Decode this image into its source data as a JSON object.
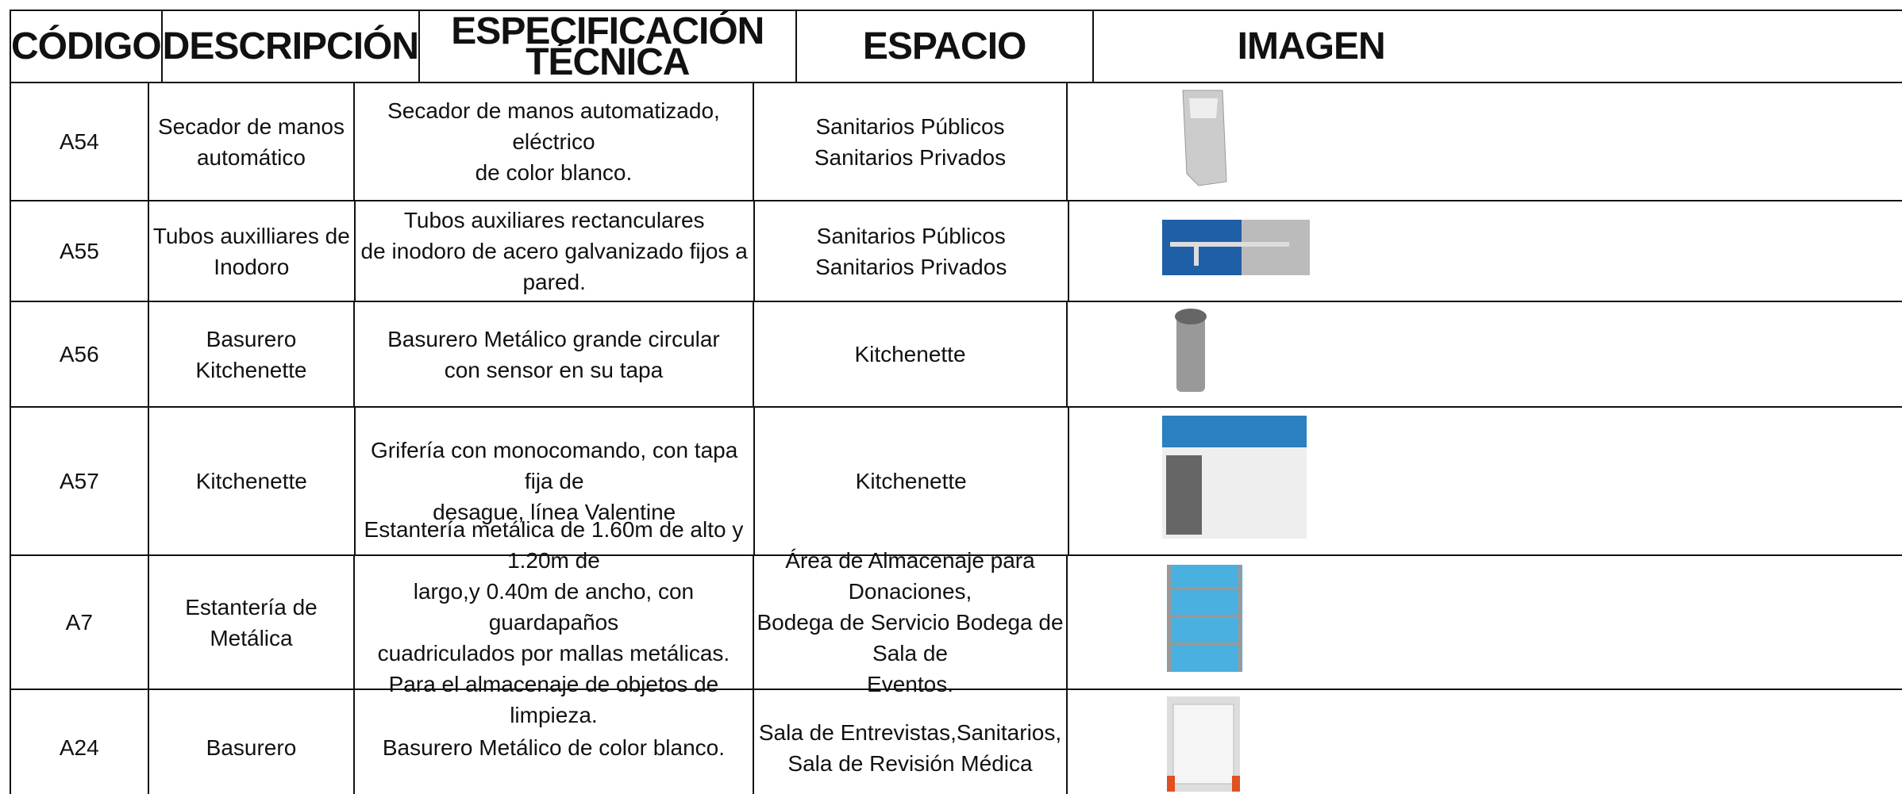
{
  "table": {
    "header": [
      "CÓDIGO",
      "DESCRIPCIÓN",
      "ESPECIFICACIÓN TÉCNICA",
      "ESPACIO",
      "IMAGEN"
    ],
    "rows": [
      {
        "code": "A54",
        "description": [
          "Secador de manos",
          "automático"
        ],
        "spec": [
          "Secador de manos automatizado, eléctrico",
          "de color blanco."
        ],
        "space": [
          "Sanitarios Públicos",
          "Sanitarios Privados"
        ]
      },
      {
        "code": "A55",
        "description": [
          "Tubos auxilliares de",
          "Inodoro"
        ],
        "spec": [
          "Tubos auxiliares rectanculares",
          "de inodoro de acero galvanizado fijos a pared."
        ],
        "space": [
          "Sanitarios Públicos",
          "Sanitarios Privados"
        ]
      },
      {
        "code": "A56",
        "description": [
          "Basurero Kitchenette"
        ],
        "spec": [
          "Basurero Metálico grande circular",
          "con sensor en su tapa"
        ],
        "space": [
          "Kitchenette"
        ]
      },
      {
        "code": "A57",
        "description": [
          "Kitchenette"
        ],
        "spec": [
          "Grifería con monocomando, con tapa fija de",
          "desague, línea Valentine"
        ],
        "space": [
          "Kitchenette"
        ]
      },
      {
        "code": "A7",
        "description": [
          "Estantería de Metálica"
        ],
        "spec": [
          "Estantería metálica de 1.60m de alto y 1.20m de",
          "largo,y 0.40m de ancho, con guardapaños",
          "cuadriculados por mallas metálicas.",
          "Para el almacenaje de objetos  de limpieza."
        ],
        "space": [
          "Área de Almacenaje para Donaciones,",
          "Bodega de Servicio Bodega de Sala de",
          "Eventos."
        ]
      },
      {
        "code": "A24",
        "description": [
          "Basurero"
        ],
        "spec": [
          "Basurero Metálico de color blanco."
        ],
        "space": [
          "Sala de Entrevistas,Sanitarios,",
          "Sala de Revisión Médica"
        ]
      }
    ]
  }
}
